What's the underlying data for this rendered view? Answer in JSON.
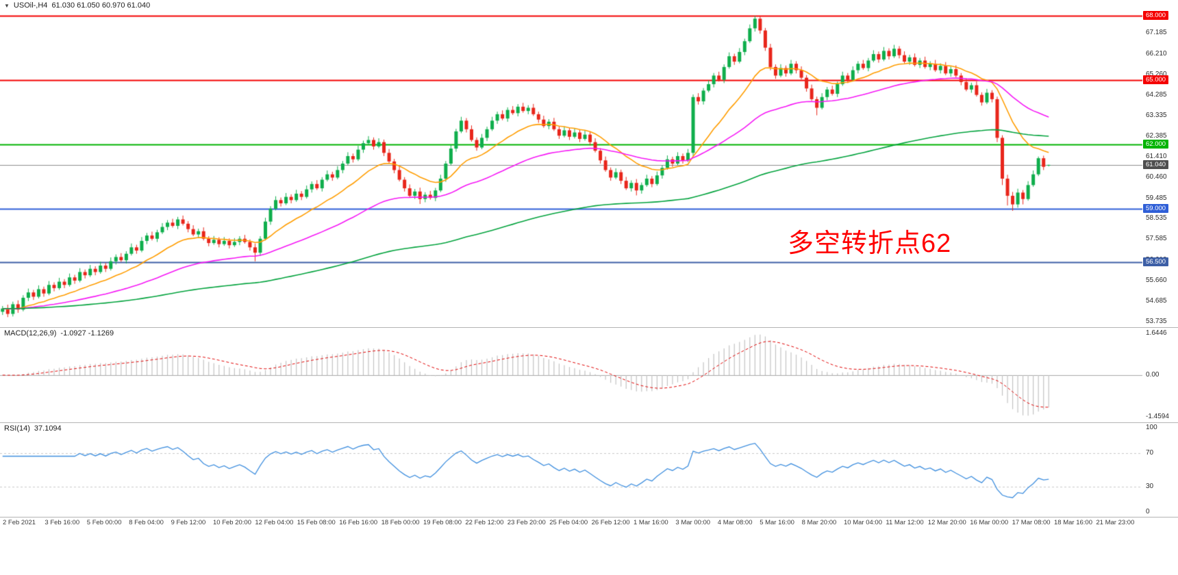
{
  "header": {
    "collapse_icon": "▼",
    "symbol_period": "USOil-,H4",
    "ohlc": "61.030 61.050 60.970 61.040"
  },
  "chart_data": {
    "type": "candlestick",
    "symbol": "USOil-",
    "timeframe": "H4",
    "last_bar": {
      "open": 61.03,
      "high": 61.05,
      "low": 60.97,
      "close": 61.04
    },
    "candle_colors": {
      "up": "#0FAE4C",
      "down": "#E8261B"
    },
    "price_axis_ticks": [
      "67.185",
      "66.210",
      "65.260",
      "64.285",
      "63.335",
      "62.385",
      "61.410",
      "60.460",
      "59.485",
      "58.535",
      "57.585",
      "56.610",
      "55.660",
      "54.685",
      "53.735"
    ],
    "levels": [
      {
        "price": 68.0,
        "label": "68.000",
        "color": "#F40000",
        "width": 2
      },
      {
        "price": 65.0,
        "label": "65.000",
        "color": "#F40000",
        "width": 2
      },
      {
        "price": 62.0,
        "label": "62.000",
        "color": "#00B400",
        "width": 2
      },
      {
        "price": 59.0,
        "label": "59.000",
        "color": "#2F5FD7",
        "width": 2
      },
      {
        "price": 56.5,
        "label": "56.500",
        "color": "#3D5FA6",
        "width": 2
      }
    ],
    "price_line": {
      "price": 61.04,
      "label": "61.040",
      "line_color": "#8C8C8C",
      "badge_color": "#4F4F4F"
    },
    "moving_averages": [
      {
        "period": 16,
        "color": "#FF9D00"
      },
      {
        "period": 48,
        "color": "#F516F5"
      },
      {
        "period": 150,
        "color": "#00A23C"
      }
    ],
    "annotation": {
      "text": "多空转折点62",
      "color": "#FF0000"
    },
    "macd": {
      "label": "MACD(12,26,9)",
      "values_text": "-1.0927 -1.1269",
      "fast": 12,
      "slow": 26,
      "signal": 9,
      "axis": [
        "1.6446",
        "0.00",
        "-1.4594"
      ],
      "hist_color": "#C2C2C2",
      "signal_color": "#E00000"
    },
    "rsi": {
      "label": "RSI(14)",
      "value_text": "37.1094",
      "period": 14,
      "axis": [
        "100",
        "70",
        "30",
        "0"
      ],
      "level_lines": [
        70,
        30
      ],
      "color": "#3E8EDE",
      "level_color": "#C8C8C8"
    },
    "time_labels": [
      "2 Feb 2021",
      "3 Feb 16:00",
      "5 Feb 00:00",
      "8 Feb 04:00",
      "9 Feb 12:00",
      "10 Feb 20:00",
      "12 Feb 04:00",
      "15 Feb 08:00",
      "16 Feb 16:00",
      "18 Feb 00:00",
      "19 Feb 08:00",
      "22 Feb 12:00",
      "23 Feb 20:00",
      "25 Feb 04:00",
      "26 Feb 12:00",
      "1 Mar 16:00",
      "3 Mar 00:00",
      "4 Mar 08:00",
      "5 Mar 16:00",
      "8 Mar 20:00",
      "10 Mar 04:00",
      "11 Mar 12:00",
      "12 Mar 20:00",
      "16 Mar 00:00",
      "17 Mar 08:00",
      "18 Mar 16:00",
      "21 Mar 23:00"
    ],
    "candles": [
      [
        54.2,
        54.47,
        54.05,
        54.35
      ],
      [
        54.35,
        54.53,
        53.95,
        54.1
      ],
      [
        54.1,
        54.67,
        53.98,
        54.55
      ],
      [
        54.55,
        54.73,
        54.15,
        54.3
      ],
      [
        54.3,
        54.97,
        54.22,
        54.85
      ],
      [
        54.85,
        55.28,
        54.7,
        55.1
      ],
      [
        55.1,
        55.22,
        54.75,
        54.9
      ],
      [
        54.9,
        55.43,
        54.82,
        55.25
      ],
      [
        55.25,
        55.37,
        54.9,
        55.05
      ],
      [
        55.05,
        55.63,
        54.97,
        55.45
      ],
      [
        55.45,
        55.57,
        55.15,
        55.3
      ],
      [
        55.3,
        55.78,
        55.22,
        55.6
      ],
      [
        55.6,
        55.72,
        55.3,
        55.45
      ],
      [
        55.45,
        55.98,
        55.37,
        55.8
      ],
      [
        55.8,
        55.92,
        55.5,
        55.65
      ],
      [
        55.65,
        56.23,
        55.57,
        56.05
      ],
      [
        56.05,
        56.17,
        55.75,
        55.9
      ],
      [
        55.9,
        56.38,
        55.82,
        56.2
      ],
      [
        56.2,
        56.32,
        55.9,
        56.05
      ],
      [
        56.05,
        56.53,
        55.97,
        56.35
      ],
      [
        56.35,
        56.47,
        56.05,
        56.2
      ],
      [
        56.2,
        56.73,
        56.12,
        56.55
      ],
      [
        56.55,
        56.87,
        56.4,
        56.75
      ],
      [
        56.75,
        56.93,
        56.52,
        56.6
      ],
      [
        56.6,
        57.02,
        56.45,
        56.9
      ],
      [
        56.9,
        57.38,
        56.82,
        57.2
      ],
      [
        57.2,
        57.32,
        56.9,
        57.05
      ],
      [
        57.05,
        57.68,
        56.97,
        57.5
      ],
      [
        57.5,
        57.87,
        57.35,
        57.75
      ],
      [
        57.75,
        57.93,
        57.52,
        57.6
      ],
      [
        57.6,
        58.02,
        57.45,
        57.9
      ],
      [
        57.9,
        58.33,
        57.82,
        58.15
      ],
      [
        58.15,
        58.47,
        58.0,
        58.35
      ],
      [
        58.35,
        58.53,
        58.12,
        58.2
      ],
      [
        58.2,
        58.62,
        58.05,
        58.5
      ],
      [
        58.5,
        58.68,
        58.22,
        58.3
      ],
      [
        58.3,
        58.42,
        57.9,
        58.05
      ],
      [
        58.05,
        58.23,
        57.72,
        57.8
      ],
      [
        57.8,
        58.07,
        57.65,
        57.95
      ],
      [
        57.95,
        58.13,
        57.52,
        57.6
      ],
      [
        57.6,
        57.72,
        57.25,
        57.4
      ],
      [
        57.4,
        57.73,
        57.32,
        57.55
      ],
      [
        57.55,
        57.67,
        57.2,
        57.35
      ],
      [
        57.35,
        57.68,
        57.27,
        57.5
      ],
      [
        57.5,
        57.62,
        57.15,
        57.3
      ],
      [
        57.3,
        57.63,
        57.22,
        57.45
      ],
      [
        57.45,
        57.72,
        57.3,
        57.6
      ],
      [
        57.6,
        57.78,
        57.37,
        57.45
      ],
      [
        57.45,
        57.57,
        57.05,
        57.2
      ],
      [
        57.2,
        57.38,
        56.55,
        56.95
      ],
      [
        56.95,
        57.72,
        56.8,
        57.6
      ],
      [
        57.6,
        58.58,
        57.52,
        58.4
      ],
      [
        58.4,
        59.12,
        58.25,
        59.0
      ],
      [
        59.0,
        59.58,
        58.92,
        59.4
      ],
      [
        59.4,
        59.52,
        59.1,
        59.25
      ],
      [
        59.25,
        59.73,
        59.17,
        59.55
      ],
      [
        59.55,
        59.67,
        59.25,
        59.4
      ],
      [
        59.4,
        59.88,
        59.32,
        59.7
      ],
      [
        59.7,
        59.82,
        59.4,
        59.55
      ],
      [
        59.55,
        60.08,
        59.47,
        59.9
      ],
      [
        59.9,
        60.27,
        59.75,
        60.15
      ],
      [
        60.15,
        60.33,
        59.87,
        59.95
      ],
      [
        59.95,
        60.47,
        59.8,
        60.35
      ],
      [
        60.35,
        60.78,
        60.27,
        60.6
      ],
      [
        60.6,
        60.72,
        60.3,
        60.45
      ],
      [
        60.45,
        60.98,
        60.37,
        60.8
      ],
      [
        60.8,
        61.22,
        60.65,
        61.1
      ],
      [
        61.1,
        61.63,
        61.02,
        61.45
      ],
      [
        61.45,
        61.57,
        61.15,
        61.3
      ],
      [
        61.3,
        61.93,
        61.22,
        61.75
      ],
      [
        61.75,
        62.17,
        61.6,
        62.05
      ],
      [
        62.05,
        62.38,
        61.97,
        62.2
      ],
      [
        62.2,
        62.32,
        61.75,
        61.9
      ],
      [
        61.9,
        62.28,
        61.82,
        62.1
      ],
      [
        62.1,
        62.22,
        61.45,
        61.6
      ],
      [
        61.6,
        61.78,
        61.12,
        61.2
      ],
      [
        61.2,
        61.32,
        60.65,
        60.8
      ],
      [
        60.8,
        60.98,
        60.27,
        60.35
      ],
      [
        60.35,
        60.47,
        59.8,
        59.95
      ],
      [
        59.95,
        60.13,
        59.52,
        59.6
      ],
      [
        59.6,
        59.92,
        59.45,
        59.8
      ],
      [
        59.8,
        59.98,
        59.22,
        59.45
      ],
      [
        59.45,
        59.77,
        59.3,
        59.65
      ],
      [
        59.65,
        59.83,
        59.42,
        59.5
      ],
      [
        59.5,
        59.97,
        59.35,
        59.85
      ],
      [
        59.85,
        60.58,
        59.77,
        60.4
      ],
      [
        60.4,
        61.22,
        60.25,
        61.1
      ],
      [
        61.1,
        61.98,
        61.02,
        61.8
      ],
      [
        61.8,
        62.72,
        61.65,
        62.6
      ],
      [
        62.6,
        63.28,
        62.52,
        63.1
      ],
      [
        63.1,
        63.22,
        62.55,
        62.7
      ],
      [
        62.7,
        62.88,
        62.12,
        62.2
      ],
      [
        62.2,
        62.32,
        61.7,
        61.85
      ],
      [
        61.85,
        62.48,
        61.77,
        62.3
      ],
      [
        62.3,
        62.82,
        62.15,
        62.7
      ],
      [
        62.7,
        63.28,
        62.62,
        63.1
      ],
      [
        63.1,
        63.52,
        62.95,
        63.4
      ],
      [
        63.4,
        63.58,
        63.12,
        63.2
      ],
      [
        63.2,
        63.72,
        63.05,
        63.6
      ],
      [
        63.6,
        63.78,
        63.37,
        63.45
      ],
      [
        63.45,
        63.87,
        63.3,
        63.75
      ],
      [
        63.75,
        63.93,
        63.47,
        63.55
      ],
      [
        63.55,
        63.82,
        63.4,
        63.7
      ],
      [
        63.7,
        63.88,
        63.32,
        63.4
      ],
      [
        63.4,
        63.52,
        63.0,
        63.15
      ],
      [
        63.15,
        63.33,
        62.77,
        62.85
      ],
      [
        62.85,
        63.17,
        62.7,
        63.05
      ],
      [
        63.05,
        63.23,
        62.62,
        62.7
      ],
      [
        62.7,
        62.82,
        62.25,
        62.4
      ],
      [
        62.4,
        62.83,
        62.32,
        62.65
      ],
      [
        62.65,
        62.77,
        62.2,
        62.35
      ],
      [
        62.35,
        62.73,
        62.27,
        62.55
      ],
      [
        62.55,
        62.67,
        62.1,
        62.25
      ],
      [
        62.25,
        62.63,
        62.17,
        62.45
      ],
      [
        62.45,
        62.57,
        61.95,
        62.1
      ],
      [
        62.1,
        62.28,
        61.62,
        61.7
      ],
      [
        61.7,
        61.82,
        61.1,
        61.25
      ],
      [
        61.25,
        61.43,
        60.72,
        60.8
      ],
      [
        60.8,
        60.92,
        60.3,
        60.45
      ],
      [
        60.45,
        60.88,
        60.37,
        60.7
      ],
      [
        60.7,
        60.82,
        60.15,
        60.3
      ],
      [
        60.3,
        60.48,
        59.87,
        59.95
      ],
      [
        59.95,
        60.32,
        59.8,
        60.2
      ],
      [
        60.2,
        60.38,
        59.62,
        59.85
      ],
      [
        59.85,
        60.22,
        59.7,
        60.1
      ],
      [
        60.1,
        60.58,
        60.02,
        60.4
      ],
      [
        60.4,
        60.52,
        60.0,
        60.15
      ],
      [
        60.15,
        60.73,
        60.07,
        60.55
      ],
      [
        60.55,
        61.02,
        60.4,
        60.9
      ],
      [
        60.9,
        61.48,
        60.82,
        61.3
      ],
      [
        61.3,
        61.42,
        60.95,
        61.1
      ],
      [
        61.1,
        61.63,
        61.02,
        61.45
      ],
      [
        61.45,
        61.57,
        61.1,
        61.25
      ],
      [
        61.25,
        61.78,
        61.17,
        61.6
      ],
      [
        61.6,
        64.32,
        61.45,
        64.2
      ],
      [
        64.2,
        64.38,
        63.85,
        64.0
      ],
      [
        64.0,
        64.62,
        63.85,
        64.5
      ],
      [
        64.5,
        64.98,
        64.42,
        64.8
      ],
      [
        64.8,
        65.32,
        64.65,
        65.2
      ],
      [
        65.2,
        65.38,
        64.92,
        65.0
      ],
      [
        65.0,
        65.72,
        64.85,
        65.6
      ],
      [
        65.6,
        66.28,
        65.52,
        66.1
      ],
      [
        66.1,
        66.22,
        65.7,
        65.85
      ],
      [
        65.85,
        66.48,
        65.77,
        66.3
      ],
      [
        66.3,
        66.92,
        66.15,
        66.8
      ],
      [
        66.8,
        67.58,
        66.72,
        67.4
      ],
      [
        67.4,
        67.98,
        67.25,
        67.85
      ],
      [
        67.85,
        67.97,
        67.15,
        67.3
      ],
      [
        67.3,
        67.42,
        66.35,
        66.5
      ],
      [
        66.5,
        66.68,
        65.45,
        65.6
      ],
      [
        65.6,
        65.72,
        65.05,
        65.2
      ],
      [
        65.2,
        65.73,
        65.12,
        65.55
      ],
      [
        65.55,
        65.67,
        65.15,
        65.3
      ],
      [
        65.3,
        65.93,
        65.22,
        65.75
      ],
      [
        65.75,
        65.87,
        65.3,
        65.45
      ],
      [
        65.45,
        65.63,
        65.02,
        65.1
      ],
      [
        65.1,
        65.22,
        64.45,
        64.6
      ],
      [
        64.6,
        64.78,
        64.02,
        64.1
      ],
      [
        64.1,
        64.22,
        63.35,
        63.7
      ],
      [
        63.7,
        64.38,
        63.62,
        64.2
      ],
      [
        64.2,
        64.67,
        64.05,
        64.55
      ],
      [
        64.55,
        64.73,
        64.27,
        64.35
      ],
      [
        64.35,
        64.92,
        64.2,
        64.8
      ],
      [
        64.8,
        65.38,
        64.72,
        65.2
      ],
      [
        65.2,
        65.32,
        64.85,
        65.0
      ],
      [
        65.0,
        65.63,
        64.92,
        65.45
      ],
      [
        65.45,
        65.87,
        65.3,
        65.75
      ],
      [
        65.75,
        65.93,
        65.47,
        65.55
      ],
      [
        65.55,
        66.02,
        65.4,
        65.9
      ],
      [
        65.9,
        66.38,
        65.82,
        66.2
      ],
      [
        66.2,
        66.32,
        65.8,
        65.95
      ],
      [
        65.95,
        66.53,
        65.87,
        66.35
      ],
      [
        66.35,
        66.47,
        65.95,
        66.1
      ],
      [
        66.1,
        66.63,
        66.02,
        66.45
      ],
      [
        66.45,
        66.57,
        66.0,
        66.15
      ],
      [
        66.15,
        66.33,
        65.77,
        65.85
      ],
      [
        65.85,
        66.17,
        65.7,
        66.05
      ],
      [
        66.05,
        66.23,
        65.62,
        65.7
      ],
      [
        65.7,
        66.02,
        65.55,
        65.9
      ],
      [
        65.9,
        66.08,
        65.52,
        65.6
      ],
      [
        65.6,
        65.87,
        65.45,
        65.75
      ],
      [
        65.75,
        65.93,
        65.37,
        65.45
      ],
      [
        65.45,
        65.77,
        65.3,
        65.65
      ],
      [
        65.65,
        65.83,
        65.22,
        65.3
      ],
      [
        65.3,
        65.62,
        65.15,
        65.5
      ],
      [
        65.5,
        65.68,
        65.12,
        65.2
      ],
      [
        65.2,
        65.32,
        64.75,
        64.9
      ],
      [
        64.9,
        65.08,
        64.47,
        64.55
      ],
      [
        64.55,
        64.87,
        64.4,
        64.75
      ],
      [
        64.75,
        64.93,
        64.22,
        64.3
      ],
      [
        64.3,
        64.42,
        63.8,
        63.95
      ],
      [
        63.95,
        64.58,
        63.87,
        64.4
      ],
      [
        64.4,
        64.52,
        63.95,
        64.1
      ],
      [
        64.1,
        64.22,
        62.1,
        62.3
      ],
      [
        62.3,
        62.42,
        60.1,
        60.4
      ],
      [
        60.4,
        60.58,
        59.15,
        59.6
      ],
      [
        59.6,
        59.78,
        58.9,
        59.2
      ],
      [
        59.2,
        59.93,
        59.05,
        59.75
      ],
      [
        59.75,
        59.87,
        59.2,
        59.45
      ],
      [
        59.45,
        60.28,
        59.37,
        60.1
      ],
      [
        60.1,
        60.78,
        60.02,
        60.6
      ],
      [
        60.6,
        61.43,
        60.52,
        61.35
      ],
      [
        61.35,
        61.47,
        60.8,
        60.95
      ],
      [
        61.03,
        61.05,
        60.97,
        61.04
      ]
    ]
  }
}
